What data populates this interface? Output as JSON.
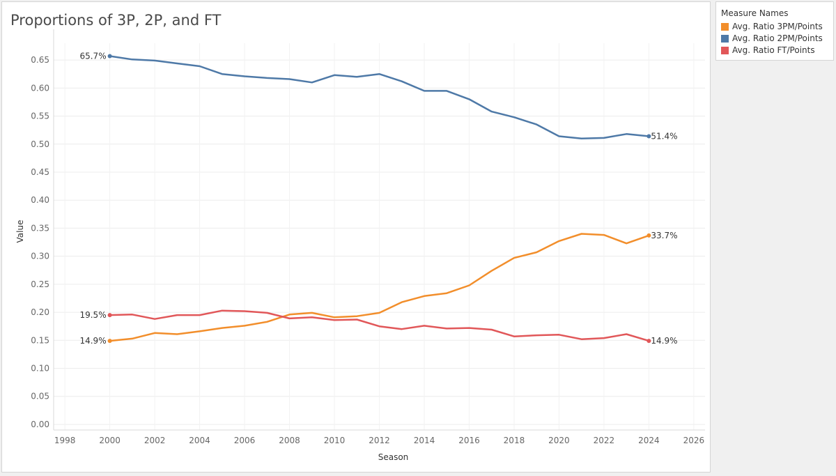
{
  "window": {
    "title": "Proportions of 3P, 2P, and FT"
  },
  "legend": {
    "title": "Measure Names",
    "items": [
      {
        "label": "Avg. Ratio 3PM/Points",
        "color": "#f28e2b"
      },
      {
        "label": "Avg. Ratio 2PM/Points",
        "color": "#4e79a7"
      },
      {
        "label": "Avg. Ratio FT/Points",
        "color": "#e15759"
      }
    ]
  },
  "chart_data": {
    "type": "line",
    "title": "Proportions of 3P, 2P, and FT",
    "xlabel": "Season",
    "ylabel": "Value",
    "xlim": [
      1997.5,
      2026.5
    ],
    "ylim": [
      -0.01,
      0.68
    ],
    "xticks": [
      1998,
      2000,
      2002,
      2004,
      2006,
      2008,
      2010,
      2012,
      2014,
      2016,
      2018,
      2020,
      2022,
      2024,
      2026
    ],
    "xtick_labels": [
      "1998",
      "2000",
      "2002",
      "2004",
      "2006",
      "2008",
      "2010",
      "2012",
      "2014",
      "2016",
      "2018",
      "2020",
      "2022",
      "2024",
      "2026"
    ],
    "yticks": [
      0,
      0.05,
      0.1,
      0.15,
      0.2,
      0.25,
      0.3,
      0.35,
      0.4,
      0.45,
      0.5,
      0.55,
      0.6,
      0.65
    ],
    "ytick_labels": [
      "0.00",
      "0.05",
      "0.10",
      "0.15",
      "0.20",
      "0.25",
      "0.30",
      "0.35",
      "0.40",
      "0.45",
      "0.50",
      "0.55",
      "0.60",
      "0.65"
    ],
    "grid": true,
    "legend_position": "right",
    "x": [
      2000,
      2001,
      2002,
      2003,
      2004,
      2005,
      2006,
      2007,
      2008,
      2009,
      2010,
      2011,
      2012,
      2013,
      2014,
      2015,
      2016,
      2017,
      2018,
      2019,
      2020,
      2021,
      2022,
      2023,
      2024
    ],
    "series": [
      {
        "name": "Avg. Ratio 2PM/Points",
        "color": "#4e79a7",
        "values": [
          0.657,
          0.651,
          0.649,
          0.644,
          0.639,
          0.625,
          0.621,
          0.618,
          0.616,
          0.61,
          0.623,
          0.62,
          0.625,
          0.612,
          0.595,
          0.595,
          0.58,
          0.558,
          0.548,
          0.535,
          0.514,
          0.51,
          0.511,
          0.518,
          0.514
        ],
        "start_label": "65.7%",
        "end_label": "51.4%"
      },
      {
        "name": "Avg. Ratio 3PM/Points",
        "color": "#f28e2b",
        "values": [
          0.149,
          0.153,
          0.163,
          0.161,
          0.166,
          0.172,
          0.176,
          0.183,
          0.196,
          0.199,
          0.191,
          0.193,
          0.199,
          0.218,
          0.229,
          0.234,
          0.248,
          0.274,
          0.297,
          0.307,
          0.327,
          0.34,
          0.338,
          0.323,
          0.337
        ],
        "start_label": "14.9%",
        "end_label": "33.7%"
      },
      {
        "name": "Avg. Ratio FT/Points",
        "color": "#e15759",
        "values": [
          0.195,
          0.196,
          0.188,
          0.195,
          0.195,
          0.203,
          0.202,
          0.199,
          0.189,
          0.191,
          0.186,
          0.187,
          0.175,
          0.17,
          0.176,
          0.171,
          0.172,
          0.169,
          0.157,
          0.159,
          0.16,
          0.152,
          0.154,
          0.161,
          0.149
        ],
        "start_label": "19.5%",
        "end_label": "14.9%"
      }
    ]
  }
}
